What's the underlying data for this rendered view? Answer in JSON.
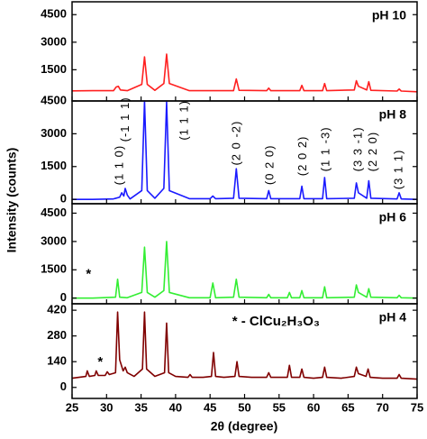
{
  "xlabel": "2θ (degree)",
  "ylabel": "Intensity (counts)",
  "xlim": [
    25,
    75
  ],
  "xticks": [
    25,
    30,
    35,
    40,
    45,
    50,
    55,
    60,
    65,
    70,
    75
  ],
  "chart_data": [
    {
      "type": "line",
      "label": "pH 10",
      "ylim": [
        -200,
        5200
      ],
      "yticks": [
        1500,
        3000,
        4500
      ],
      "series": [
        {
          "color": "#ff2020",
          "x": [
            25,
            28,
            31,
            31.4,
            31.7,
            32,
            33,
            35.1,
            35.5,
            35.9,
            37,
            38.3,
            38.7,
            39.1,
            42,
            48.4,
            48.8,
            49.2,
            53.2,
            53.5,
            53.8,
            58,
            58.3,
            58.6,
            61.3,
            61.6,
            61.9,
            65.9,
            66.2,
            66.5,
            67.7,
            68,
            68.3,
            72.1,
            72.4,
            72.7,
            75
          ],
          "values": [
            350,
            360,
            360,
            560,
            600,
            400,
            360,
            700,
            2200,
            700,
            380,
            750,
            2350,
            750,
            360,
            360,
            1000,
            380,
            360,
            500,
            360,
            360,
            650,
            360,
            360,
            750,
            360,
            400,
            900,
            600,
            400,
            850,
            380,
            340,
            450,
            340,
            300
          ]
        }
      ],
      "annotations": []
    },
    {
      "type": "line",
      "label": "pH 8",
      "ylim": [
        -200,
        4500
      ],
      "yticks": [
        0,
        1500,
        3000,
        4500
      ],
      "series": [
        {
          "color": "#1a1aff",
          "x": [
            25,
            28,
            31,
            31.9,
            32.2,
            32.5,
            32.7,
            33,
            33.4,
            35.1,
            35.5,
            35.9,
            37,
            38.3,
            38.7,
            39.1,
            42,
            45,
            45.4,
            45.8,
            48.4,
            48.8,
            49.2,
            53.2,
            53.5,
            53.8,
            56,
            58,
            58.3,
            58.6,
            61.3,
            61.6,
            61.9,
            65.9,
            66.2,
            66.5,
            67.7,
            68,
            68.3,
            72.1,
            72.4,
            72.7,
            75
          ],
          "values": [
            0,
            0,
            20,
            100,
            300,
            150,
            500,
            200,
            20,
            400,
            4500,
            400,
            50,
            500,
            4450,
            400,
            30,
            30,
            150,
            30,
            50,
            1400,
            50,
            30,
            400,
            30,
            30,
            30,
            600,
            30,
            30,
            1000,
            30,
            50,
            750,
            300,
            50,
            850,
            50,
            20,
            300,
            20,
            0
          ]
        }
      ],
      "annotations": [
        {
          "text": "(1 1 0)",
          "x": 31.9,
          "y": 650,
          "vertical": true
        },
        {
          "text": "(-1 1 1)",
          "x": 32.8,
          "y": 2630,
          "vertical": true
        },
        {
          "text": "(1 1 1)",
          "x": 41.3,
          "y": 2700,
          "vertical": true
        },
        {
          "text": "(2 0 -2)",
          "x": 48.9,
          "y": 1550,
          "vertical": true
        },
        {
          "text": "(0 2 0)",
          "x": 53.7,
          "y": 660,
          "vertical": true
        },
        {
          "text": "(2 0 2)",
          "x": 58.5,
          "y": 1070,
          "vertical": true
        },
        {
          "text": "(1 1 -3)",
          "x": 61.8,
          "y": 1270,
          "vertical": true
        },
        {
          "text": "(3 3 -1)",
          "x": 66.5,
          "y": 1270,
          "vertical": true
        },
        {
          "text": "(2 2 0)",
          "x": 68.7,
          "y": 1270,
          "vertical": true
        },
        {
          "text": "(3 1 1)",
          "x": 72.4,
          "y": 450,
          "vertical": true
        }
      ]
    },
    {
      "type": "line",
      "label": "pH 6",
      "ylim": [
        -300,
        5000
      ],
      "yticks": [
        0,
        1500,
        3000,
        4500
      ],
      "series": [
        {
          "color": "#33ee33",
          "x": [
            25,
            28,
            31.3,
            31.6,
            31.9,
            33,
            35.1,
            35.5,
            35.9,
            37,
            38.3,
            38.7,
            39.1,
            42,
            45,
            45.4,
            45.8,
            48.4,
            48.8,
            49.2,
            53.2,
            53.5,
            53.8,
            56.2,
            56.5,
            56.8,
            58,
            58.3,
            58.6,
            61.3,
            61.6,
            61.9,
            65.9,
            66.2,
            66.5,
            67.7,
            68,
            68.3,
            72.1,
            72.4,
            72.7,
            75
          ],
          "values": [
            0,
            0,
            50,
            1000,
            50,
            20,
            300,
            2700,
            300,
            50,
            400,
            3000,
            300,
            20,
            20,
            800,
            20,
            50,
            1000,
            50,
            20,
            200,
            20,
            20,
            300,
            20,
            20,
            400,
            20,
            20,
            600,
            20,
            50,
            700,
            300,
            50,
            500,
            50,
            20,
            150,
            20,
            0
          ]
        }
      ],
      "annotations": [
        {
          "text": "*",
          "x": 27,
          "y": 1260,
          "vertical": false
        }
      ]
    },
    {
      "type": "line",
      "label": "pH 4",
      "ylim": [
        -60,
        455
      ],
      "yticks": [
        0,
        140,
        280,
        420
      ],
      "series": [
        {
          "color": "#800000",
          "x": [
            25,
            26,
            27,
            27.2,
            27.5,
            28.3,
            28.5,
            28.8,
            29.8,
            30.1,
            30.4,
            31.3,
            31.6,
            31.9,
            32.4,
            32.7,
            33,
            34,
            35.2,
            35.5,
            35.8,
            37,
            38.4,
            38.7,
            39,
            40,
            41.8,
            42.1,
            42.4,
            44,
            45.2,
            45.5,
            45.8,
            47,
            48.6,
            48.9,
            49.2,
            51,
            53.2,
            53.5,
            53.8,
            55,
            56.2,
            56.5,
            56.8,
            58,
            58.3,
            58.6,
            60,
            61.3,
            61.6,
            61.9,
            64,
            65.9,
            66.2,
            66.5,
            67.6,
            67.9,
            68.2,
            70,
            72.1,
            72.4,
            72.7,
            75
          ],
          "values": [
            50,
            55,
            60,
            90,
            60,
            65,
            90,
            65,
            65,
            85,
            70,
            80,
            410,
            150,
            90,
            110,
            80,
            60,
            100,
            410,
            100,
            60,
            80,
            350,
            80,
            60,
            55,
            70,
            55,
            55,
            60,
            190,
            60,
            55,
            60,
            140,
            60,
            55,
            55,
            80,
            55,
            55,
            55,
            120,
            55,
            55,
            100,
            55,
            50,
            55,
            110,
            55,
            50,
            60,
            110,
            75,
            60,
            100,
            55,
            50,
            50,
            70,
            50,
            45
          ]
        }
      ],
      "annotations": [
        {
          "text": "*",
          "x": 28.7,
          "y": 135,
          "vertical": false
        },
        {
          "text": "* - ClCu₂H₃O₃",
          "x": 48.2,
          "y": 357,
          "vertical": false
        }
      ]
    }
  ]
}
